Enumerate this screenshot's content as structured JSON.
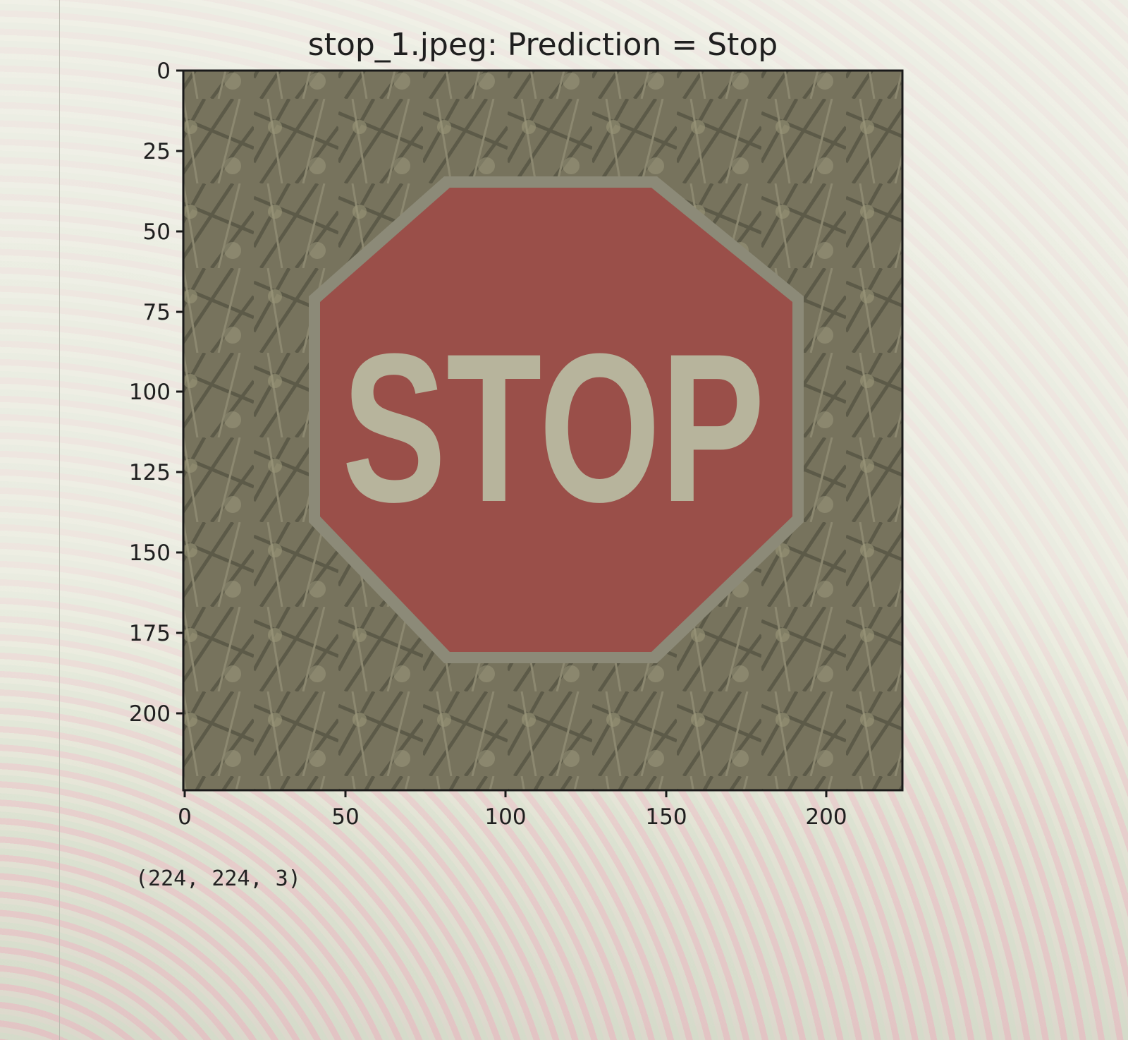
{
  "plot": {
    "title": "stop_1.jpeg: Prediction = Stop",
    "image_sign_text": "STOP",
    "x_ticks": [
      "0",
      "50",
      "100",
      "150",
      "200"
    ],
    "y_ticks": [
      "0",
      "25",
      "50",
      "75",
      "100",
      "125",
      "150",
      "175",
      "200"
    ]
  },
  "output": {
    "shape_text": "(224, 224, 3)"
  },
  "colors": {
    "sign_red": "#9a4f49",
    "background": "#7a7560"
  }
}
